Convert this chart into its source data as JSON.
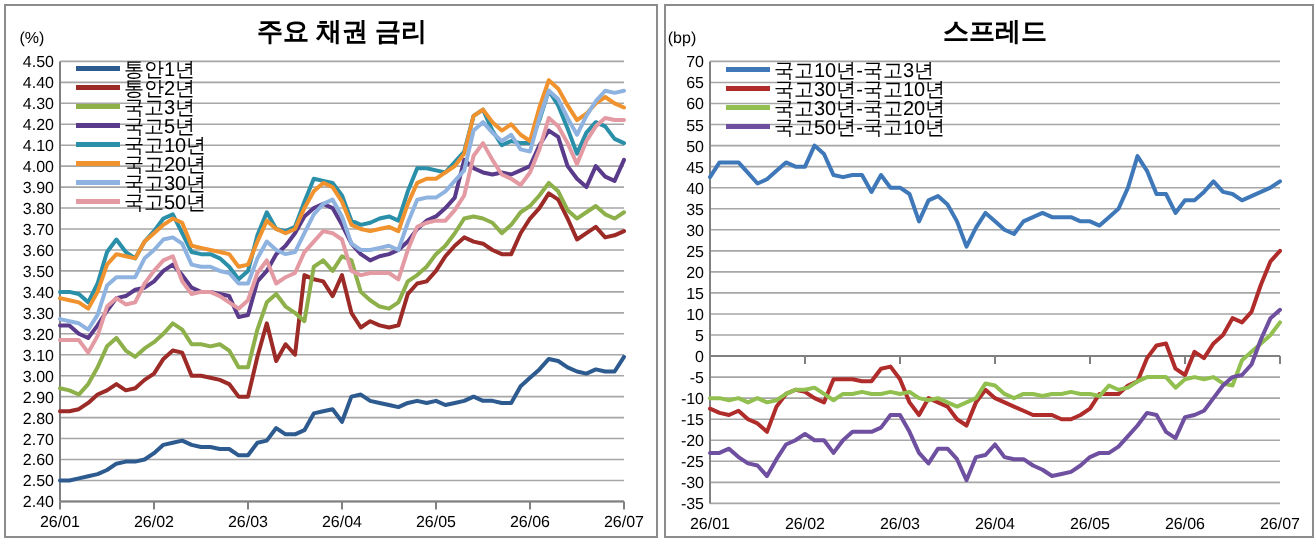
{
  "chart_data": [
    {
      "type": "line",
      "title": "주요 채권 금리",
      "ylabel": "(%)",
      "grid": "y",
      "legend": "top left",
      "categories": [
        "26/01",
        null,
        null,
        null,
        null,
        null,
        null,
        null,
        null,
        null,
        "26/02",
        null,
        null,
        null,
        null,
        null,
        null,
        null,
        null,
        null,
        "26/03",
        null,
        null,
        null,
        null,
        null,
        null,
        null,
        null,
        null,
        "26/04",
        null,
        null,
        null,
        null,
        null,
        null,
        null,
        null,
        null,
        "26/05",
        null,
        null,
        null,
        null,
        null,
        null,
        null,
        null,
        null,
        "26/06",
        null,
        null,
        null,
        null,
        null,
        null,
        null,
        null,
        null,
        "26/07"
      ],
      "ylim": [
        2.4,
        4.5
      ],
      "yticks": [
        {
          "value": 2.4,
          "label": "2.40"
        },
        {
          "value": 2.5,
          "label": "2.50"
        },
        {
          "value": 2.6,
          "label": "2.60"
        },
        {
          "value": 2.7,
          "label": "2.70"
        },
        {
          "value": 2.8,
          "label": "2.80"
        },
        {
          "value": 2.9,
          "label": "2.90"
        },
        {
          "value": 3.0,
          "label": "3.00"
        },
        {
          "value": 3.1,
          "label": "3.10"
        },
        {
          "value": 3.2,
          "label": "3.20"
        },
        {
          "value": 3.3,
          "label": "3.30"
        },
        {
          "value": 3.4,
          "label": "3.40"
        },
        {
          "value": 3.5,
          "label": "3.50"
        },
        {
          "value": 3.6,
          "label": "3.60"
        },
        {
          "value": 3.7,
          "label": "3.70"
        },
        {
          "value": 3.8,
          "label": "3.80"
        },
        {
          "value": 3.9,
          "label": "3.90"
        },
        {
          "value": 4.0,
          "label": "4.00"
        },
        {
          "value": 4.1,
          "label": "4.10"
        },
        {
          "value": 4.2,
          "label": "4.20"
        },
        {
          "value": 4.3,
          "label": "4.30"
        },
        {
          "value": 4.4,
          "label": "4.40"
        },
        {
          "value": 4.5,
          "label": "4.50"
        }
      ],
      "series": [
        {
          "name": "통안1년",
          "color": "#2e5b8f",
          "values": [
            2.5,
            2.5,
            2.51,
            2.52,
            2.53,
            2.55,
            2.58,
            2.59,
            2.59,
            2.6,
            2.63,
            2.67,
            2.68,
            2.69,
            2.67,
            2.66,
            2.66,
            2.65,
            2.65,
            2.62,
            2.62,
            2.68,
            2.69,
            2.75,
            2.72,
            2.72,
            2.74,
            2.82,
            2.83,
            2.84,
            2.78,
            2.9,
            2.91,
            2.88,
            2.87,
            2.86,
            2.85,
            2.87,
            2.88,
            2.87,
            2.88,
            2.86,
            2.87,
            2.88,
            2.9,
            2.88,
            2.88,
            2.87,
            2.87,
            2.95,
            2.99,
            3.03,
            3.08,
            3.07,
            3.04,
            3.02,
            3.01,
            3.03,
            3.02,
            3.02,
            3.09
          ]
        },
        {
          "name": "통안2년",
          "color": "#9c2a26",
          "values": [
            2.83,
            2.83,
            2.84,
            2.87,
            2.91,
            2.93,
            2.96,
            2.93,
            2.94,
            2.98,
            3.01,
            3.08,
            3.12,
            3.11,
            3.0,
            3.0,
            2.99,
            2.98,
            2.96,
            2.9,
            2.9,
            3.09,
            3.25,
            3.07,
            3.15,
            3.1,
            3.48,
            3.46,
            3.45,
            3.38,
            3.48,
            3.3,
            3.23,
            3.26,
            3.24,
            3.23,
            3.24,
            3.39,
            3.44,
            3.45,
            3.5,
            3.57,
            3.62,
            3.66,
            3.64,
            3.63,
            3.6,
            3.58,
            3.58,
            3.68,
            3.75,
            3.8,
            3.87,
            3.84,
            3.75,
            3.65,
            3.68,
            3.71,
            3.66,
            3.67,
            3.69
          ]
        },
        {
          "name": "국고3년",
          "color": "#8db04a",
          "values": [
            2.94,
            2.93,
            2.91,
            2.96,
            3.04,
            3.14,
            3.18,
            3.12,
            3.09,
            3.13,
            3.16,
            3.2,
            3.25,
            3.22,
            3.15,
            3.15,
            3.14,
            3.15,
            3.12,
            3.04,
            3.04,
            3.22,
            3.35,
            3.39,
            3.33,
            3.3,
            3.26,
            3.52,
            3.55,
            3.5,
            3.57,
            3.55,
            3.4,
            3.36,
            3.33,
            3.32,
            3.35,
            3.45,
            3.48,
            3.52,
            3.58,
            3.62,
            3.68,
            3.75,
            3.76,
            3.75,
            3.73,
            3.68,
            3.72,
            3.78,
            3.81,
            3.86,
            3.92,
            3.88,
            3.79,
            3.75,
            3.78,
            3.81,
            3.77,
            3.75,
            3.78
          ]
        },
        {
          "name": "국고5년",
          "color": "#5a3a8a",
          "values": [
            3.24,
            3.24,
            3.2,
            3.18,
            3.24,
            3.31,
            3.37,
            3.38,
            3.41,
            3.42,
            3.45,
            3.5,
            3.53,
            3.48,
            3.42,
            3.4,
            3.4,
            3.39,
            3.38,
            3.28,
            3.29,
            3.45,
            3.5,
            3.58,
            3.62,
            3.68,
            3.76,
            3.8,
            3.82,
            3.8,
            3.72,
            3.63,
            3.58,
            3.55,
            3.57,
            3.58,
            3.6,
            3.64,
            3.7,
            3.74,
            3.76,
            3.8,
            3.85,
            4.03,
            3.99,
            3.97,
            3.96,
            3.97,
            3.96,
            3.98,
            4.0,
            4.1,
            4.17,
            4.14,
            4.0,
            3.94,
            3.9,
            4.0,
            3.95,
            3.93,
            4.03
          ]
        },
        {
          "name": "국고10년",
          "color": "#2a8fa8",
          "values": [
            3.4,
            3.4,
            3.39,
            3.35,
            3.44,
            3.59,
            3.65,
            3.59,
            3.56,
            3.64,
            3.69,
            3.75,
            3.77,
            3.68,
            3.59,
            3.58,
            3.58,
            3.56,
            3.52,
            3.46,
            3.5,
            3.67,
            3.78,
            3.7,
            3.69,
            3.71,
            3.83,
            3.94,
            3.93,
            3.92,
            3.86,
            3.74,
            3.72,
            3.73,
            3.75,
            3.76,
            3.74,
            3.88,
            3.99,
            3.99,
            3.98,
            3.97,
            4.02,
            4.07,
            4.24,
            4.27,
            4.17,
            4.1,
            4.12,
            4.11,
            4.11,
            4.22,
            4.36,
            4.29,
            4.18,
            4.06,
            4.16,
            4.21,
            4.19,
            4.13,
            4.11
          ]
        },
        {
          "name": "국고20년",
          "color": "#f0922d",
          "values": [
            3.37,
            3.36,
            3.35,
            3.32,
            3.4,
            3.53,
            3.58,
            3.57,
            3.56,
            3.64,
            3.68,
            3.72,
            3.75,
            3.73,
            3.62,
            3.61,
            3.6,
            3.59,
            3.58,
            3.52,
            3.53,
            3.64,
            3.74,
            3.7,
            3.68,
            3.7,
            3.8,
            3.88,
            3.92,
            3.9,
            3.83,
            3.72,
            3.7,
            3.69,
            3.7,
            3.71,
            3.69,
            3.82,
            3.92,
            3.94,
            3.94,
            3.97,
            4.0,
            4.06,
            4.24,
            4.27,
            4.21,
            4.17,
            4.2,
            4.15,
            4.12,
            4.28,
            4.41,
            4.37,
            4.29,
            4.22,
            4.25,
            4.3,
            4.33,
            4.3,
            4.28
          ]
        },
        {
          "name": "국고30년",
          "color": "#8fb3e0",
          "values": [
            3.27,
            3.26,
            3.25,
            3.22,
            3.29,
            3.43,
            3.47,
            3.47,
            3.47,
            3.56,
            3.6,
            3.65,
            3.66,
            3.63,
            3.53,
            3.52,
            3.52,
            3.5,
            3.49,
            3.44,
            3.44,
            3.56,
            3.64,
            3.6,
            3.58,
            3.59,
            3.68,
            3.77,
            3.82,
            3.84,
            3.76,
            3.63,
            3.6,
            3.6,
            3.61,
            3.62,
            3.6,
            3.73,
            3.84,
            3.85,
            3.85,
            3.88,
            3.93,
            3.98,
            4.17,
            4.21,
            4.16,
            4.12,
            4.15,
            4.08,
            4.07,
            4.23,
            4.36,
            4.32,
            4.23,
            4.15,
            4.24,
            4.31,
            4.36,
            4.35,
            4.36
          ]
        },
        {
          "name": "국고50년",
          "color": "#e39aa3",
          "values": [
            3.17,
            3.17,
            3.17,
            3.11,
            3.19,
            3.33,
            3.37,
            3.34,
            3.35,
            3.44,
            3.5,
            3.55,
            3.57,
            3.45,
            3.39,
            3.4,
            3.4,
            3.38,
            3.35,
            3.32,
            3.36,
            3.49,
            3.55,
            3.44,
            3.47,
            3.49,
            3.59,
            3.64,
            3.69,
            3.68,
            3.65,
            3.5,
            3.48,
            3.49,
            3.49,
            3.49,
            3.46,
            3.6,
            3.71,
            3.73,
            3.74,
            3.74,
            3.79,
            3.86,
            4.05,
            4.11,
            4.03,
            3.96,
            3.94,
            3.91,
            3.97,
            4.08,
            4.23,
            4.19,
            4.11,
            4.01,
            4.12,
            4.19,
            4.23,
            4.22,
            4.22
          ]
        }
      ]
    },
    {
      "type": "line",
      "title": "스프레드",
      "ylabel": "(bp)",
      "grid": "y",
      "legend": "top left",
      "categories": [
        "26/01",
        null,
        null,
        null,
        null,
        null,
        null,
        null,
        null,
        null,
        "26/02",
        null,
        null,
        null,
        null,
        null,
        null,
        null,
        null,
        null,
        "26/03",
        null,
        null,
        null,
        null,
        null,
        null,
        null,
        null,
        null,
        "26/04",
        null,
        null,
        null,
        null,
        null,
        null,
        null,
        null,
        null,
        "26/05",
        null,
        null,
        null,
        null,
        null,
        null,
        null,
        null,
        null,
        "26/06",
        null,
        null,
        null,
        null,
        null,
        null,
        null,
        null,
        null,
        "26/07"
      ],
      "ylim": [
        -35,
        70
      ],
      "yticks": [
        -35,
        -30,
        -25,
        -20,
        -15,
        -10,
        -5,
        0,
        5,
        10,
        15,
        20,
        25,
        30,
        35,
        40,
        45,
        50,
        55,
        60,
        65,
        70
      ],
      "series": [
        {
          "name": "국고10년-국고3년",
          "color": "#3f78b8",
          "values": [
            42.5,
            46,
            46,
            46,
            43.5,
            41,
            42,
            44,
            46,
            45,
            45,
            50,
            48,
            43,
            42.5,
            43,
            43,
            39,
            43,
            40,
            40,
            38.5,
            32,
            37,
            38,
            36,
            32,
            26,
            30.5,
            34,
            32,
            30,
            29,
            32,
            33,
            34,
            33,
            33,
            33,
            32,
            32,
            31,
            33,
            35,
            40,
            47.5,
            44,
            38.5,
            38.5,
            34,
            37,
            37,
            39,
            41.5,
            39,
            38.5,
            37,
            38,
            39,
            40,
            41.5
          ]
        },
        {
          "name": "국고30년-국고10년",
          "color": "#b02c2a",
          "values": [
            -12.5,
            -13.5,
            -14,
            -13,
            -15,
            -16,
            -18,
            -12,
            -9,
            -8,
            -8.5,
            -10,
            -11,
            -5.5,
            -5.5,
            -5.5,
            -6,
            -6,
            -3,
            -2.5,
            -5.5,
            -11,
            -14,
            -10,
            -11,
            -12,
            -15,
            -16.5,
            -11,
            -8,
            -10,
            -11,
            -12,
            -13,
            -14,
            -14,
            -14,
            -15,
            -15,
            -14,
            -12.5,
            -9,
            -9,
            -9,
            -7,
            -6,
            -0.5,
            2.5,
            3,
            -3,
            -4.5,
            1,
            -0.5,
            3,
            5,
            9,
            8,
            10.5,
            17,
            22.5,
            25
          ]
        },
        {
          "name": "국고30년-국고20년",
          "color": "#92c050",
          "values": [
            -10,
            -10,
            -10.5,
            -10,
            -11,
            -10,
            -11,
            -10.5,
            -9,
            -8,
            -8,
            -7.5,
            -9,
            -10.5,
            -9,
            -9,
            -8.5,
            -9,
            -9,
            -8.5,
            -9,
            -8.5,
            -10,
            -10.5,
            -10,
            -11,
            -12,
            -11,
            -10,
            -6.5,
            -7,
            -9,
            -10,
            -9,
            -9,
            -9.5,
            -9,
            -9,
            -8.5,
            -9,
            -9,
            -9.5,
            -7,
            -8,
            -7.5,
            -6,
            -5,
            -5,
            -5,
            -7.5,
            -5.5,
            -5,
            -5.5,
            -5,
            -6.5,
            -7,
            -1,
            1,
            3,
            5,
            8
          ]
        },
        {
          "name": "국고50년-국고10년",
          "color": "#6e4fa0",
          "values": [
            -23,
            -23,
            -22,
            -24,
            -25.5,
            -26,
            -28.5,
            -24.5,
            -21,
            -20,
            -18.5,
            -20,
            -20,
            -23,
            -20,
            -18,
            -18,
            -18,
            -17,
            -14,
            -14,
            -18,
            -23,
            -25.5,
            -22,
            -22,
            -24.5,
            -29.5,
            -24,
            -23.5,
            -21,
            -24,
            -24.5,
            -24.5,
            -26,
            -27,
            -28.5,
            -28,
            -27.5,
            -26,
            -24,
            -23,
            -23,
            -21.5,
            -19,
            -16.5,
            -13.5,
            -14,
            -18,
            -19.5,
            -14.5,
            -14,
            -13,
            -10,
            -7,
            -5,
            -4.5,
            -2,
            4,
            9,
            11
          ]
        }
      ]
    }
  ]
}
